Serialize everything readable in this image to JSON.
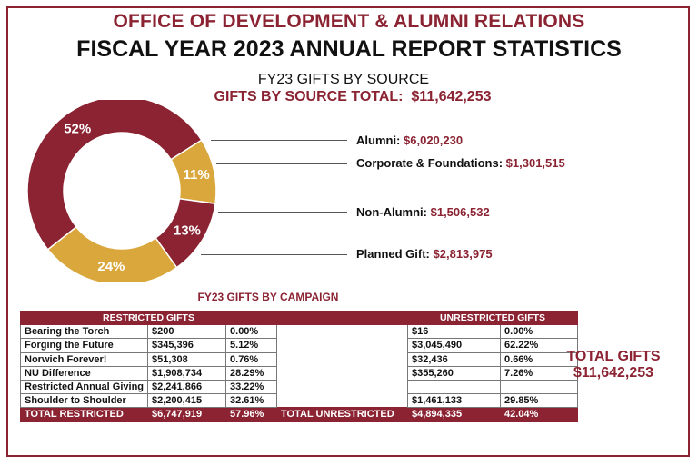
{
  "header": {
    "title": "OFFICE OF DEVELOPMENT & ALUMNI RELATIONS",
    "subtitle": "FISCAL YEAR 2023 ANNUAL REPORT STATISTICS"
  },
  "gifts_by_source": {
    "heading": "FY23 GIFTS BY SOURCE",
    "total_label": "GIFTS BY SOURCE TOTAL:",
    "total_value": "$11,642,253"
  },
  "chart_data": {
    "type": "pie",
    "title": "FY23 GIFTS BY SOURCE",
    "slices": [
      {
        "label": "Alumni:",
        "amount": "$6,020,230",
        "value": 6020230,
        "percent_label": "52%",
        "color": "#8b2332"
      },
      {
        "label": "Corporate & Foundations:",
        "amount": "$1,301,515",
        "value": 1301515,
        "percent_label": "11%",
        "color": "#d9a73b"
      },
      {
        "label": "Non-Alumni:",
        "amount": "$1,506,532",
        "value": 1506532,
        "percent_label": "13%",
        "color": "#8b2332"
      },
      {
        "label": "Planned Gift:",
        "amount": "$2,813,975",
        "value": 2813975,
        "percent_label": "24%",
        "color": "#d9a73b"
      }
    ]
  },
  "campaign": {
    "heading": "FY23 GIFTS BY CAMPAIGN",
    "restricted_header": "RESTRICTED GIFTS",
    "unrestricted_header": "UNRESTRICTED GIFTS",
    "rows": [
      {
        "name": "Bearing the Torch",
        "r_amount": "$200",
        "r_pct": "0.00%",
        "u_amount": "$16",
        "u_pct": "0.00%"
      },
      {
        "name": "Forging the Future",
        "r_amount": "$345,396",
        "r_pct": "5.12%",
        "u_amount": "$3,045,490",
        "u_pct": "62.22%"
      },
      {
        "name": "Norwich Forever!",
        "r_amount": "$51,308",
        "r_pct": "0.76%",
        "u_amount": "$32,436",
        "u_pct": "0.66%"
      },
      {
        "name": "NU Difference",
        "r_amount": "$1,908,734",
        "r_pct": "28.29%",
        "u_amount": "$355,260",
        "u_pct": "7.26%"
      },
      {
        "name": "Restricted Annual Giving",
        "r_amount": "$2,241,866",
        "r_pct": "33.22%",
        "u_amount": "",
        "u_pct": ""
      },
      {
        "name": "Shoulder to Shoulder",
        "r_amount": "$2,200,415",
        "r_pct": "32.61%",
        "u_amount": "$1,461,133",
        "u_pct": "29.85%"
      }
    ],
    "total_restricted_label": "TOTAL RESTRICTED",
    "total_restricted_amount": "$6,747,919",
    "total_restricted_pct": "57.96%",
    "total_unrestricted_label": "TOTAL UNRESTRICTED",
    "total_unrestricted_amount": "$4,894,335",
    "total_unrestricted_pct": "42.04%"
  },
  "total_gifts": {
    "label": "TOTAL GIFTS",
    "value": "$11,642,253"
  }
}
